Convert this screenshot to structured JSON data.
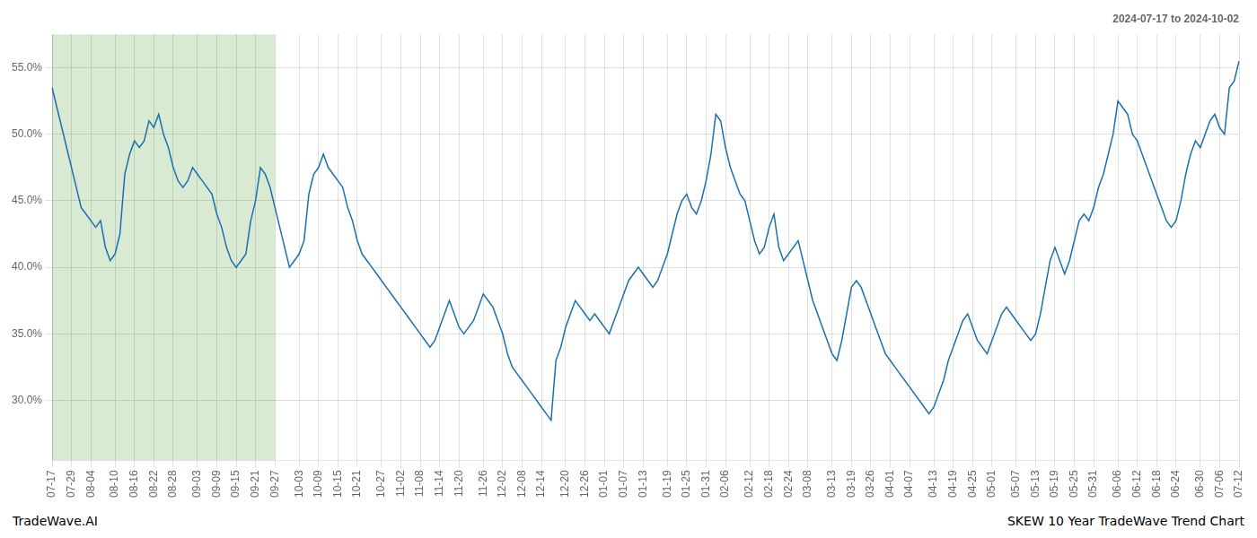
{
  "chart_data": {
    "type": "line",
    "title": "2024-07-17 to 2024-10-02",
    "annotations": [
      "TradeWave.AI",
      "SKEW 10 Year TradeWave Trend Chart"
    ],
    "color": "#1a6faf",
    "grid": true,
    "shaded_range": {
      "from": "07-17",
      "to": "09-27",
      "color": "#d9ead3"
    },
    "ylim": [
      25.5,
      57.5
    ],
    "yticks": [
      {
        "value": 30.0,
        "label": "30.0%"
      },
      {
        "value": 35.0,
        "label": "35.0%"
      },
      {
        "value": 40.0,
        "label": "40.0%"
      },
      {
        "value": 45.0,
        "label": "45.0%"
      },
      {
        "value": 50.0,
        "label": "50.0%"
      },
      {
        "value": 55.0,
        "label": "55.0%"
      }
    ],
    "categories": [
      "07-17",
      null,
      null,
      null,
      "07-29",
      null,
      null,
      null,
      "08-04",
      null,
      null,
      null,
      null,
      "08-10",
      null,
      null,
      null,
      "08-16",
      null,
      null,
      null,
      "08-22",
      null,
      null,
      null,
      "08-28",
      null,
      null,
      null,
      null,
      "09-03",
      null,
      null,
      null,
      "09-09",
      null,
      null,
      null,
      "09-15",
      null,
      null,
      null,
      "09-21",
      null,
      null,
      null,
      "09-27",
      null,
      null,
      null,
      null,
      "10-03",
      null,
      null,
      null,
      "10-09",
      null,
      null,
      null,
      "10-15",
      null,
      null,
      null,
      "10-21",
      null,
      null,
      null,
      null,
      "10-27",
      null,
      null,
      null,
      "11-02",
      null,
      null,
      null,
      "11-08",
      null,
      null,
      null,
      "11-14",
      null,
      null,
      null,
      "11-20",
      null,
      null,
      null,
      null,
      "11-26",
      null,
      null,
      null,
      "12-02",
      null,
      null,
      null,
      "12-08",
      null,
      null,
      null,
      "12-14",
      null,
      null,
      null,
      null,
      "12-20",
      null,
      null,
      null,
      "12-26",
      null,
      null,
      null,
      "01-01",
      null,
      null,
      null,
      "01-07",
      null,
      null,
      null,
      "01-13",
      null,
      null,
      null,
      null,
      "01-19",
      null,
      null,
      null,
      "01-25",
      null,
      null,
      null,
      "01-31",
      null,
      null,
      null,
      "02-06",
      null,
      null,
      null,
      null,
      "02-12",
      null,
      null,
      null,
      "02-18",
      null,
      null,
      null,
      "02-24",
      null,
      null,
      null,
      "03-08",
      null,
      null,
      null,
      null,
      "03-13",
      null,
      null,
      null,
      "03-19",
      null,
      null,
      null,
      "03-26",
      null,
      null,
      null,
      "04-01",
      null,
      null,
      null,
      "04-07",
      null,
      null,
      null,
      null,
      "04-13",
      null,
      null,
      null,
      "04-19",
      null,
      null,
      null,
      "04-25",
      null,
      null,
      null,
      "05-01",
      null,
      null,
      null,
      null,
      "05-07",
      null,
      null,
      null,
      "05-13",
      null,
      null,
      null,
      "05-19",
      null,
      null,
      null,
      "05-25",
      null,
      null,
      null,
      "05-31",
      null,
      null,
      null,
      null,
      "06-06",
      null,
      null,
      null,
      "06-12",
      null,
      null,
      null,
      "06-18",
      null,
      null,
      null,
      "06-24",
      null,
      null,
      null,
      null,
      "06-30",
      null,
      null,
      null,
      "07-06",
      null,
      null,
      null,
      "07-12"
    ],
    "values": [
      53.5,
      52.0,
      50.5,
      49.0,
      47.5,
      46.0,
      44.5,
      44.0,
      43.5,
      43.0,
      43.5,
      41.5,
      40.5,
      41.0,
      42.5,
      47.0,
      48.5,
      49.5,
      49.0,
      49.5,
      51.0,
      50.5,
      51.5,
      50.0,
      49.0,
      47.5,
      46.5,
      46.0,
      46.5,
      47.5,
      47.0,
      46.5,
      46.0,
      45.5,
      44.0,
      43.0,
      41.5,
      40.5,
      40.0,
      40.5,
      41.0,
      43.5,
      45.0,
      47.5,
      47.0,
      46.0,
      44.5,
      43.0,
      41.5,
      40.0,
      40.5,
      41.0,
      42.0,
      45.5,
      47.0,
      47.5,
      48.5,
      47.5,
      47.0,
      46.5,
      46.0,
      44.5,
      43.5,
      42.0,
      41.0,
      40.5,
      40.0,
      39.5,
      39.0,
      38.5,
      38.0,
      37.5,
      37.0,
      36.5,
      36.0,
      35.5,
      35.0,
      34.5,
      34.0,
      34.5,
      35.5,
      36.5,
      37.5,
      36.5,
      35.5,
      35.0,
      35.5,
      36.0,
      37.0,
      38.0,
      37.5,
      37.0,
      36.0,
      35.0,
      33.5,
      32.5,
      32.0,
      31.5,
      31.0,
      30.5,
      30.0,
      29.5,
      29.0,
      28.5,
      33.0,
      34.0,
      35.5,
      36.5,
      37.5,
      37.0,
      36.5,
      36.0,
      36.5,
      36.0,
      35.5,
      35.0,
      36.0,
      37.0,
      38.0,
      39.0,
      39.5,
      40.0,
      39.5,
      39.0,
      38.5,
      39.0,
      40.0,
      41.0,
      42.5,
      44.0,
      45.0,
      45.5,
      44.5,
      44.0,
      45.0,
      46.5,
      48.5,
      51.5,
      51.0,
      49.0,
      47.5,
      46.5,
      45.5,
      45.0,
      43.5,
      42.0,
      41.0,
      41.5,
      43.0,
      44.0,
      41.5,
      40.5,
      41.0,
      41.5,
      42.0,
      40.5,
      39.0,
      37.5,
      36.5,
      35.5,
      34.5,
      33.5,
      33.0,
      34.5,
      36.5,
      38.5,
      39.0,
      38.5,
      37.5,
      36.5,
      35.5,
      34.5,
      33.5,
      33.0,
      32.5,
      32.0,
      31.5,
      31.0,
      30.5,
      30.0,
      29.5,
      29.0,
      29.5,
      30.5,
      31.5,
      33.0,
      34.0,
      35.0,
      36.0,
      36.5,
      35.5,
      34.5,
      34.0,
      33.5,
      34.5,
      35.5,
      36.5,
      37.0,
      36.5,
      36.0,
      35.5,
      35.0,
      34.5,
      35.0,
      36.5,
      38.5,
      40.5,
      41.5,
      40.5,
      39.5,
      40.5,
      42.0,
      43.5,
      44.0,
      43.5,
      44.5,
      46.0,
      47.0,
      48.5,
      50.0,
      52.5,
      52.0,
      51.5,
      50.0,
      49.5,
      48.5,
      47.5,
      46.5,
      45.5,
      44.5,
      43.5,
      43.0,
      43.5,
      45.0,
      47.0,
      48.5,
      49.5,
      49.0,
      50.0,
      51.0,
      51.5,
      50.5,
      50.0,
      53.5,
      54.0,
      55.5
    ]
  }
}
